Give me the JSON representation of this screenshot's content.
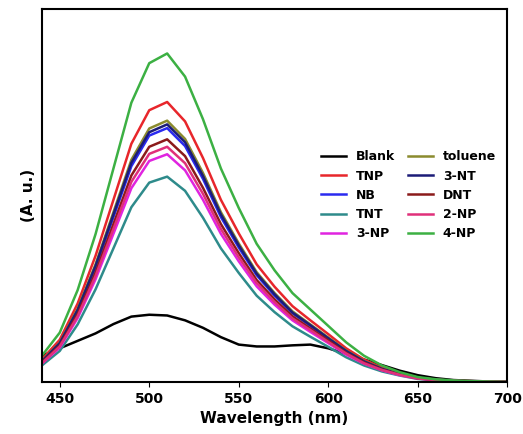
{
  "chart_data": {
    "type": "line",
    "x_label": "Wavelength (nm)",
    "y_label": "(A. u.)",
    "x": [
      440,
      450,
      460,
      470,
      480,
      490,
      500,
      510,
      520,
      530,
      540,
      550,
      560,
      570,
      580,
      590,
      600,
      610,
      620,
      630,
      640,
      650,
      660,
      670,
      680,
      690,
      700
    ],
    "xlim": [
      440,
      700
    ],
    "xticks": [
      450,
      500,
      550,
      600,
      650,
      700
    ],
    "ylim": [
      0,
      100
    ],
    "yticks": [],
    "tick_labels": "x",
    "legend": "center right",
    "series": [
      {
        "name": "Blank",
        "color": "#000000",
        "values": [
          7,
          9,
          11,
          13,
          15.5,
          17.5,
          18,
          17.8,
          16.5,
          14.5,
          12,
          10,
          9.5,
          9.5,
          9.8,
          10,
          9,
          7.5,
          6,
          4.5,
          3,
          1.8,
          1,
          0.5,
          0.3,
          0.1,
          0
        ]
      },
      {
        "name": "TNP",
        "color": "#e8262b",
        "values": [
          6,
          11.3,
          21,
          33.8,
          48.8,
          63.8,
          72.8,
          75,
          69.8,
          60,
          48.8,
          39.8,
          31.5,
          25.5,
          20.3,
          16.5,
          12.8,
          9,
          6,
          3.8,
          2.3,
          1.1,
          0.6,
          0.3,
          0.2,
          0.1,
          0
        ]
      },
      {
        "name": "NB",
        "color": "#2a2af0",
        "values": [
          5.4,
          10.2,
          19,
          30.6,
          44.2,
          57.8,
          66,
          68,
          63.2,
          54.4,
          44.2,
          36,
          28.6,
          23.1,
          18.4,
          15,
          11.6,
          8.2,
          5.4,
          3.4,
          2,
          1,
          0.5,
          0.3,
          0.1,
          0.1,
          0
        ]
      },
      {
        "name": "TNT",
        "color": "#2e8b8b",
        "values": [
          4.4,
          8.3,
          15.4,
          24.8,
          35.8,
          46.8,
          53.4,
          55,
          51.2,
          44,
          35.8,
          29.2,
          23.1,
          18.7,
          14.9,
          12.1,
          9.4,
          6.6,
          4.4,
          2.8,
          1.7,
          0.8,
          0.4,
          0.2,
          0.1,
          0.1,
          0
        ]
      },
      {
        "name": "3-NP",
        "color": "#e024e0",
        "values": [
          4.9,
          9.2,
          17.1,
          27.5,
          39.7,
          51.9,
          59.2,
          61,
          56.7,
          48.8,
          39.7,
          32.3,
          25.6,
          20.7,
          16.5,
          13.4,
          10.4,
          7.3,
          4.9,
          3.1,
          1.8,
          0.9,
          0.5,
          0.2,
          0.1,
          0.1,
          0
        ]
      },
      {
        "name": "toluene",
        "color": "#8b8b2e",
        "values": [
          5.6,
          10.5,
          19.6,
          31.5,
          45.5,
          59.5,
          67.9,
          70,
          65.1,
          56,
          45.5,
          37.1,
          29.4,
          23.8,
          18.9,
          15.4,
          11.9,
          8.4,
          5.6,
          3.5,
          2.1,
          1.1,
          0.6,
          0.3,
          0.1,
          0.1,
          0
        ]
      },
      {
        "name": "3-NT",
        "color": "#1c1c78",
        "values": [
          5.5,
          10.4,
          19.3,
          31.1,
          44.9,
          58.7,
          66.9,
          69,
          64.2,
          55.2,
          44.9,
          36.6,
          29,
          23.5,
          18.6,
          15.2,
          11.7,
          8.3,
          5.5,
          3.5,
          2.1,
          1,
          0.6,
          0.3,
          0.1,
          0.1,
          0
        ]
      },
      {
        "name": "DNT",
        "color": "#8b1a1a",
        "values": [
          5.2,
          9.8,
          18.2,
          29.3,
          42.3,
          55.3,
          63,
          65,
          60.5,
          52,
          42.3,
          34.5,
          27.3,
          22.1,
          17.6,
          14.3,
          11.1,
          7.8,
          5.2,
          3.3,
          2,
          1,
          0.5,
          0.3,
          0.1,
          0.1,
          0
        ]
      },
      {
        "name": "2-NP",
        "color": "#e0307a",
        "values": [
          5,
          9.5,
          17.6,
          28.4,
          41,
          53.6,
          61.1,
          63,
          58.6,
          50.4,
          41,
          33.4,
          26.5,
          21.4,
          17,
          13.9,
          10.7,
          7.6,
          5,
          3.2,
          1.9,
          0.9,
          0.5,
          0.3,
          0.1,
          0.1,
          0
        ]
      },
      {
        "name": "4-NP",
        "color": "#3cb043",
        "values": [
          7,
          13.2,
          24.6,
          39.6,
          57.2,
          74.8,
          85.4,
          88,
          81.8,
          70.4,
          57.2,
          46.6,
          37,
          29.9,
          23.8,
          19.4,
          15,
          10.6,
          7,
          4.4,
          2.6,
          1.3,
          0.7,
          0.4,
          0.2,
          0.1,
          0
        ]
      }
    ]
  }
}
